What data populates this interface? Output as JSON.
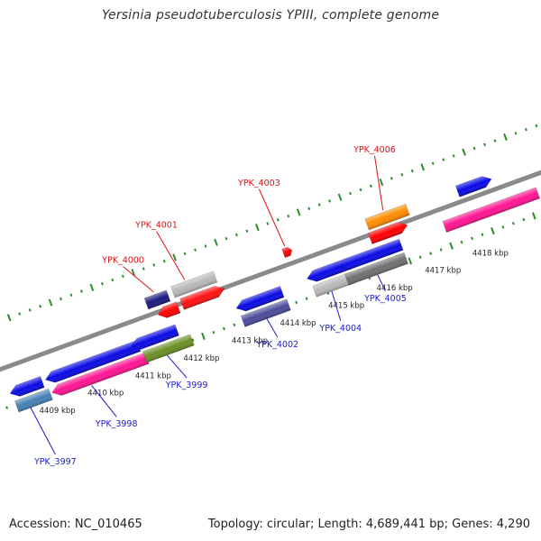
{
  "title": "Yersinia pseudotuberculosis YPIII, complete genome",
  "footer": {
    "accession": "Accession: NC_010465",
    "summary": "Topology: circular; Length: 4,689,441 bp; Genes: 4,290"
  },
  "kbp_labels": [
    "4409 kbp",
    "4410 kbp",
    "4411 kbp",
    "4412 kbp",
    "4413 kbp",
    "4414 kbp",
    "4415 kbp",
    "4416 kbp",
    "4417 kbp",
    "4418 kbp"
  ],
  "colors": {
    "backbone": "#8a8a8a",
    "ticks": "#2e8b2e",
    "forward_label": "#dd1111",
    "reverse_label": "#1a1acc"
  },
  "genes": {
    "forward_labeled": [
      "YPK_4000",
      "YPK_4001",
      "YPK_4003",
      "YPK_4006"
    ],
    "reverse_labeled": [
      "YPK_3997",
      "YPK_3998",
      "YPK_3999",
      "YPK_4002",
      "YPK_4004",
      "YPK_4005"
    ]
  },
  "feature_colors": [
    "#0a0ae6",
    "#ff1493",
    "#4682b4",
    "#6b8e23",
    "#4b4b9b",
    "#b8b8b8",
    "#707070",
    "#ff1010",
    "#1a1a80",
    "#ff8c00",
    "#ff0000"
  ]
}
